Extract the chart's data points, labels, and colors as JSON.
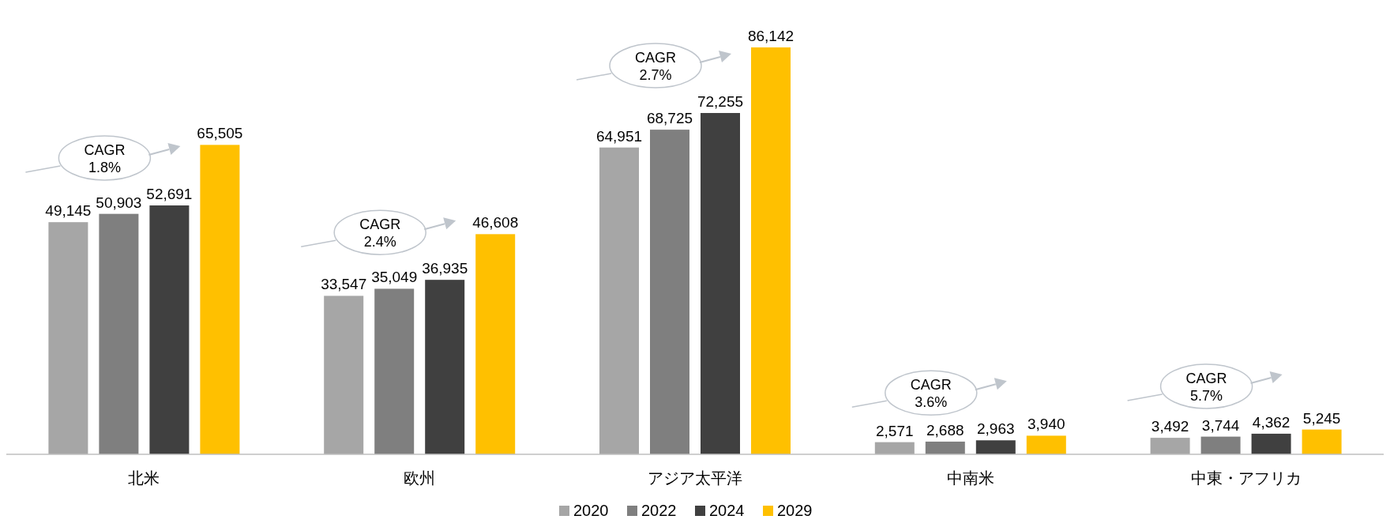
{
  "chart_data": {
    "type": "bar",
    "categories": [
      "北米",
      "欧州",
      "アジア太平洋",
      "中南米",
      "中東・アフリカ"
    ],
    "series": [
      {
        "name": "2020",
        "color": "#a6a6a6",
        "values": [
          49145,
          33547,
          64951,
          2571,
          3492
        ],
        "value_labels": [
          "49,145",
          "33,547",
          "64,951",
          "2,571",
          "3,492"
        ]
      },
      {
        "name": "2022",
        "color": "#7f7f7f",
        "values": [
          50903,
          35049,
          68725,
          2688,
          3744
        ],
        "value_labels": [
          "50,903",
          "35,049",
          "68,725",
          "2,688",
          "3,744"
        ]
      },
      {
        "name": "2024",
        "color": "#404040",
        "values": [
          52691,
          36935,
          72255,
          2963,
          4362
        ],
        "value_labels": [
          "52,691",
          "36,935",
          "72,255",
          "2,963",
          "4,362"
        ]
      },
      {
        "name": "2029",
        "color": "#ffc000",
        "values": [
          65505,
          46608,
          86142,
          3940,
          5245
        ],
        "value_labels": [
          "65,505",
          "46,608",
          "86,142",
          "3,940",
          "5,245"
        ]
      }
    ],
    "legend": "bottom",
    "annotations": [
      "CAGR\n1.8%",
      "CAGR\n2.4%",
      "CAGR\n2.7%",
      "CAGR\n3.6%",
      "CAGR\n5.7%"
    ]
  }
}
